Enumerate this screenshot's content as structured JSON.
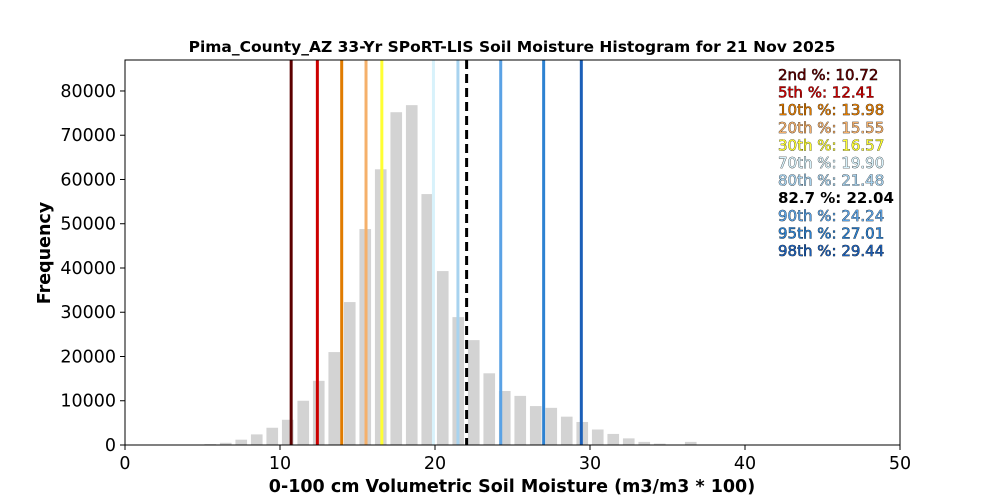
{
  "chart_data": {
    "type": "bar",
    "title": "Pima_County_AZ 33-Yr SPoRT-LIS Soil Moisture Histogram for 21 Nov 2025",
    "xlabel": "0-100 cm Volumetric Soil Moisture (m3/m3 * 100)",
    "ylabel": "Frequency",
    "xlim": [
      0,
      50
    ],
    "ylim": [
      0,
      87000
    ],
    "xticks": [
      0,
      10,
      20,
      30,
      40,
      50
    ],
    "yticks": [
      0,
      10000,
      20000,
      30000,
      40000,
      50000,
      60000,
      70000,
      80000
    ],
    "bar_color": "#d3d3d3",
    "bars": {
      "x": [
        5.5,
        6.5,
        7.5,
        8.5,
        9.5,
        10.5,
        11.5,
        12.5,
        13.5,
        14.5,
        15.5,
        16.5,
        17.5,
        18.5,
        19.5,
        20.5,
        21.5,
        22.5,
        23.5,
        24.5,
        25.5,
        26.5,
        27.5,
        28.5,
        29.5,
        30.5,
        31.5,
        32.5,
        33.5,
        34.5,
        35.5,
        36.5,
        37.5
      ],
      "values": [
        200,
        500,
        1200,
        2400,
        3900,
        5700,
        10000,
        14500,
        21000,
        32300,
        48800,
        62300,
        75200,
        76800,
        56700,
        39300,
        28900,
        23700,
        16200,
        12200,
        11100,
        8800,
        8400,
        6400,
        5200,
        3500,
        2500,
        1500,
        700,
        300,
        100,
        700,
        100
      ]
    },
    "percentiles": [
      {
        "label": "2nd %: 10.72",
        "value": 10.72,
        "color": "#5c0000",
        "style": "solid",
        "bold": false
      },
      {
        "label": "5th %: 12.41",
        "value": 12.41,
        "color": "#cc0000",
        "style": "solid",
        "bold": false
      },
      {
        "label": "10th %: 13.98",
        "value": 13.98,
        "color": "#e07b00",
        "style": "solid",
        "bold": false
      },
      {
        "label": "20th %: 15.55",
        "value": 15.55,
        "color": "#f5b06a",
        "style": "solid",
        "bold": false
      },
      {
        "label": "30th %: 16.57",
        "value": 16.57,
        "color": "#ffff33",
        "style": "solid",
        "bold": false
      },
      {
        "label": "70th %: 19.90",
        "value": 19.9,
        "color": "#d8f2fb",
        "style": "solid",
        "bold": false
      },
      {
        "label": "80th %: 21.48",
        "value": 21.48,
        "color": "#a8d3ef",
        "style": "solid",
        "bold": false
      },
      {
        "label": "82.7 %: 22.04",
        "value": 22.04,
        "color": "#000000",
        "style": "dashed",
        "bold": true
      },
      {
        "label": "90th %: 24.24",
        "value": 24.24,
        "color": "#5aa2e5",
        "style": "solid",
        "bold": false
      },
      {
        "label": "95th %: 27.01",
        "value": 27.01,
        "color": "#2d82d2",
        "style": "solid",
        "bold": false
      },
      {
        "label": "98th %: 29.44",
        "value": 29.44,
        "color": "#1b5fb8",
        "style": "solid",
        "bold": false
      }
    ]
  }
}
